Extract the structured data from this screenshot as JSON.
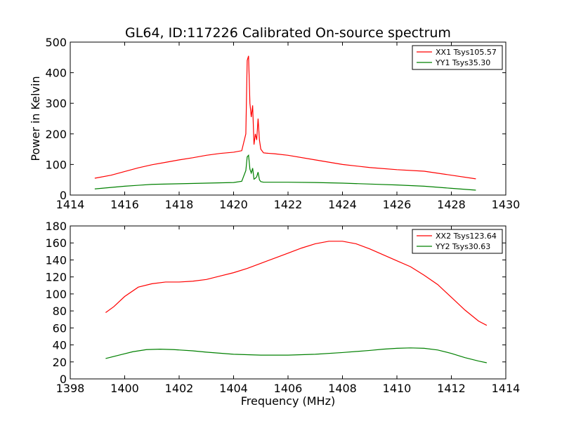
{
  "figure": {
    "title": "GL64, ID:117226 Calibrated On-source spectrum"
  },
  "chart_data": [
    {
      "type": "line",
      "xlabel": "",
      "ylabel": "Power in Kelvin",
      "xlim": [
        1414,
        1430
      ],
      "ylim": [
        0,
        500
      ],
      "xticks": [
        1414,
        1416,
        1418,
        1420,
        1422,
        1424,
        1426,
        1428,
        1430
      ],
      "yticks": [
        0,
        100,
        200,
        300,
        400,
        500
      ],
      "legend_position": "top-right",
      "series": [
        {
          "name": "XX1 Tsys105.57",
          "color": "#ff0000",
          "x": [
            1414.9,
            1415.5,
            1416.0,
            1416.5,
            1417.0,
            1417.5,
            1418.0,
            1418.5,
            1419.0,
            1419.5,
            1420.0,
            1420.3,
            1420.45,
            1420.5,
            1420.55,
            1420.6,
            1420.65,
            1420.7,
            1420.75,
            1420.8,
            1420.85,
            1420.9,
            1420.95,
            1421.0,
            1421.1,
            1421.2,
            1421.5,
            1422.0,
            1423.0,
            1424.0,
            1425.0,
            1426.0,
            1427.0,
            1428.0,
            1428.9
          ],
          "y": [
            55,
            65,
            77,
            89,
            99,
            107,
            115,
            122,
            130,
            136,
            140,
            145,
            200,
            440,
            455,
            300,
            255,
            293,
            165,
            200,
            180,
            250,
            180,
            150,
            138,
            137,
            135,
            130,
            115,
            100,
            90,
            83,
            78,
            65,
            53
          ]
        },
        {
          "name": "YY1 Tsys35.30",
          "color": "#008000",
          "x": [
            1414.9,
            1415.5,
            1416.0,
            1416.5,
            1417.0,
            1418.0,
            1419.0,
            1420.0,
            1420.3,
            1420.45,
            1420.5,
            1420.55,
            1420.6,
            1420.65,
            1420.7,
            1420.75,
            1420.8,
            1420.85,
            1420.9,
            1420.95,
            1421.0,
            1421.1,
            1421.5,
            1422.0,
            1423.0,
            1424.0,
            1425.0,
            1426.0,
            1427.0,
            1428.0,
            1428.9
          ],
          "y": [
            20,
            25,
            29,
            32,
            35,
            37,
            39,
            41,
            45,
            80,
            125,
            130,
            85,
            72,
            88,
            52,
            55,
            60,
            75,
            50,
            44,
            42,
            42,
            42,
            41,
            39,
            36,
            33,
            29,
            22,
            16
          ]
        }
      ]
    },
    {
      "type": "line",
      "xlabel": "Frequency (MHz)",
      "ylabel": "",
      "xlim": [
        1398,
        1414
      ],
      "ylim": [
        0,
        180
      ],
      "xticks": [
        1398,
        1400,
        1402,
        1404,
        1406,
        1408,
        1410,
        1412,
        1414
      ],
      "yticks": [
        0,
        20,
        40,
        60,
        80,
        100,
        120,
        140,
        160,
        180
      ],
      "legend_position": "top-right",
      "series": [
        {
          "name": "XX2 Tsys123.64",
          "color": "#ff0000",
          "x": [
            1399.3,
            1399.6,
            1400.0,
            1400.5,
            1401.0,
            1401.5,
            1402.0,
            1402.5,
            1403.0,
            1403.5,
            1404.0,
            1404.5,
            1405.0,
            1405.5,
            1406.0,
            1406.5,
            1407.0,
            1407.5,
            1408.0,
            1408.5,
            1409.0,
            1409.5,
            1410.0,
            1410.5,
            1411.0,
            1411.5,
            1412.0,
            1412.5,
            1413.0,
            1413.3
          ],
          "y": [
            78,
            85,
            97,
            108,
            112,
            114,
            114,
            115,
            117,
            121,
            125,
            130,
            136,
            142,
            148,
            154,
            159,
            162,
            162,
            159,
            153,
            146,
            139,
            132,
            122,
            111,
            96,
            81,
            68,
            63
          ]
        },
        {
          "name": "YY2 Tsys30.63",
          "color": "#008000",
          "x": [
            1399.3,
            1399.8,
            1400.3,
            1400.8,
            1401.3,
            1401.8,
            1402.5,
            1403.0,
            1404.0,
            1405.0,
            1406.0,
            1407.0,
            1408.0,
            1409.0,
            1409.5,
            1410.0,
            1410.5,
            1411.0,
            1411.5,
            1412.0,
            1412.5,
            1413.0,
            1413.3
          ],
          "y": [
            24,
            28,
            32,
            34.5,
            35,
            34.5,
            33,
            31.5,
            29,
            28,
            28,
            29,
            31,
            33.5,
            35,
            36,
            36.5,
            36,
            34,
            30,
            25,
            21,
            19
          ]
        }
      ]
    }
  ]
}
